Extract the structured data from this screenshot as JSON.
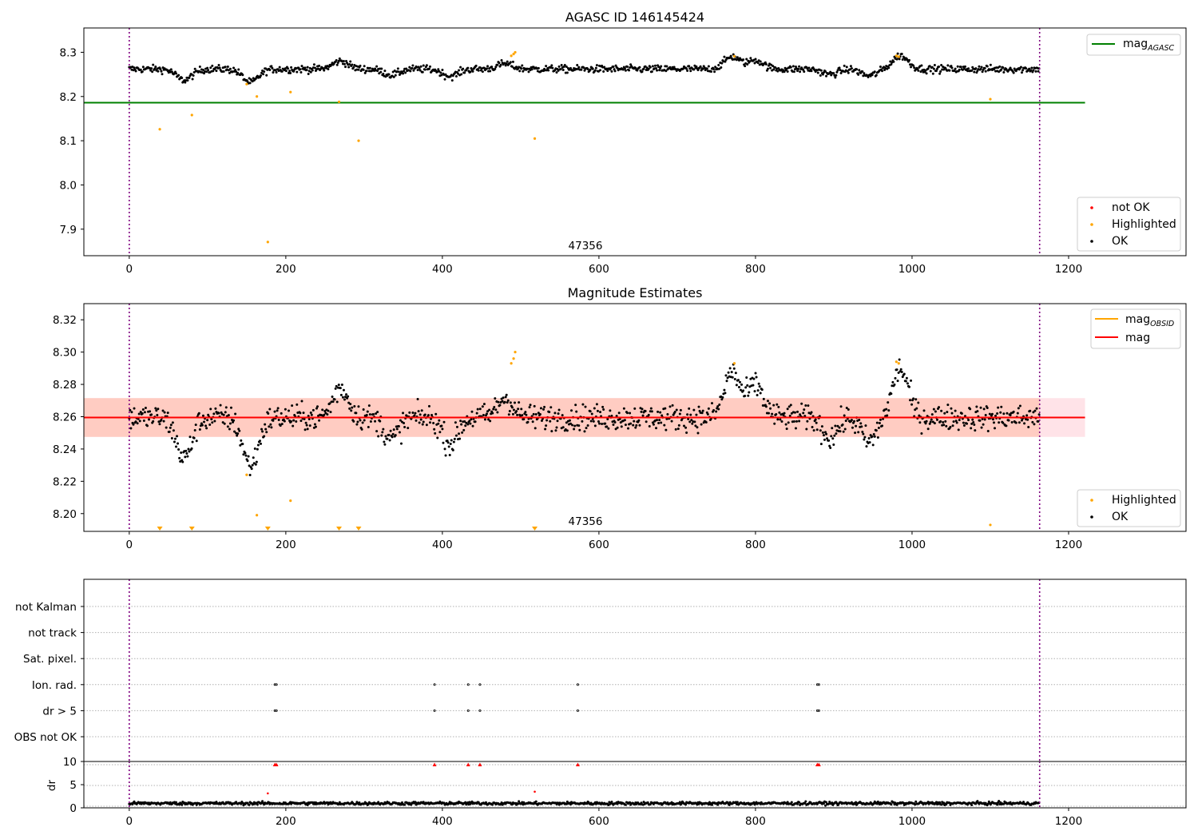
{
  "colors": {
    "ok": "#000000",
    "highlighted": "#ffa500",
    "not_ok": "#ff0000",
    "agasc_line": "#008000",
    "mag_line": "#ff0000",
    "obsid_line": "#ffa500",
    "vline": "#800080",
    "band_outer": "#ffc0cb",
    "band_inner": "#ffa07a"
  },
  "chart_data": [
    {
      "type": "scatter",
      "title": "AGASC ID 146145424",
      "xlim": [
        -58,
        1350
      ],
      "ylim": [
        7.84,
        8.355
      ],
      "xticks": [
        "0",
        "200",
        "400",
        "600",
        "800",
        "1000",
        "1200"
      ],
      "yticks": [
        "7.9",
        "8.0",
        "8.1",
        "8.2",
        "8.3"
      ],
      "obsid_label": "47356",
      "obsid_boundaries": [
        0,
        1163
      ],
      "mag_agasc": 8.186,
      "legend_lines": [
        {
          "label": "mag",
          "sub": "AGASC"
        }
      ],
      "legend_points": [
        "not OK",
        "Highlighted",
        "OK"
      ],
      "highlighted_points": [
        [
          39,
          8.126
        ],
        [
          80,
          8.158
        ],
        [
          150,
          8.228
        ],
        [
          163,
          8.2
        ],
        [
          177,
          7.871
        ],
        [
          206,
          8.21
        ],
        [
          268,
          8.188
        ],
        [
          293,
          8.1
        ],
        [
          488,
          8.292
        ],
        [
          491,
          8.296
        ],
        [
          493,
          8.3
        ],
        [
          518,
          8.105
        ],
        [
          773,
          8.291
        ],
        [
          980,
          8.292
        ],
        [
          983,
          8.29
        ],
        [
          1100,
          8.194
        ]
      ],
      "ok_series": {
        "x_start": 0,
        "x_end": 1163,
        "baseline": 8.262,
        "spread": 0.008,
        "anomalies": [
          [
            70,
            -0.025
          ],
          [
            155,
            -0.03
          ],
          [
            270,
            0.018
          ],
          [
            335,
            -0.013
          ],
          [
            410,
            -0.016
          ],
          [
            480,
            0.012
          ],
          [
            770,
            0.028
          ],
          [
            800,
            0.02
          ],
          [
            895,
            -0.012
          ],
          [
            945,
            -0.015
          ],
          [
            985,
            0.03
          ]
        ]
      }
    },
    {
      "type": "scatter",
      "title": "Magnitude Estimates",
      "xlim": [
        -58,
        1350
      ],
      "ylim": [
        8.189,
        8.33
      ],
      "xticks": [
        "0",
        "200",
        "400",
        "600",
        "800",
        "1000",
        "1200"
      ],
      "yticks": [
        "8.20",
        "8.22",
        "8.24",
        "8.26",
        "8.28",
        "8.30",
        "8.32"
      ],
      "obsid_label": "47356",
      "obsid_boundaries": [
        0,
        1163
      ],
      "mag": 8.2595,
      "mag_obsid": 8.2595,
      "band_outer": [
        8.2475,
        8.2715
      ],
      "band_inner": [
        8.2475,
        8.2715
      ],
      "legend_lines": [
        {
          "label": "mag",
          "sub": "OBSID"
        },
        {
          "label": "mag",
          "sub": ""
        }
      ],
      "legend_points": [
        "Highlighted",
        "OK"
      ],
      "highlighted_points": [
        [
          150,
          8.224
        ],
        [
          163,
          8.199
        ],
        [
          206,
          8.208
        ],
        [
          488,
          8.293
        ],
        [
          491,
          8.296
        ],
        [
          493,
          8.3
        ],
        [
          773,
          8.293
        ],
        [
          980,
          8.294
        ],
        [
          983,
          8.293
        ],
        [
          1100,
          8.193
        ]
      ],
      "highlighted_below": [
        39,
        80,
        177,
        268,
        293,
        518
      ],
      "ok_series": {
        "x_start": 0,
        "x_end": 1163,
        "baseline": 8.2595,
        "spread": 0.0075,
        "anomalies": [
          [
            70,
            -0.025
          ],
          [
            155,
            -0.03
          ],
          [
            270,
            0.018
          ],
          [
            335,
            -0.013
          ],
          [
            410,
            -0.016
          ],
          [
            480,
            0.012
          ],
          [
            770,
            0.028
          ],
          [
            800,
            0.02
          ],
          [
            895,
            -0.012
          ],
          [
            945,
            -0.015
          ],
          [
            985,
            0.03
          ]
        ]
      }
    },
    {
      "type": "scatter",
      "title": "",
      "xlim": [
        -58,
        1350
      ],
      "xticks": [
        "0",
        "200",
        "400",
        "600",
        "800",
        "1000",
        "1200"
      ],
      "flag_rows": [
        "not Kalman",
        "not track",
        "Sat. pixel.",
        "Ion. rad.",
        "dr > 5",
        "OBS not OK"
      ],
      "flag_points": {
        "Ion. rad.": [
          186,
          188,
          390,
          433,
          448,
          573,
          879,
          881
        ],
        "dr > 5": [
          186,
          188,
          390,
          433,
          448,
          573,
          879,
          881
        ]
      },
      "obsid_boundaries": [
        0,
        1163
      ]
    },
    {
      "type": "scatter",
      "title": "",
      "ylabel": "dr",
      "xlim": [
        -58,
        1350
      ],
      "ylim": [
        0,
        10
      ],
      "yticks": [
        "0",
        "5",
        "10"
      ],
      "xticks": [
        "0",
        "200",
        "400",
        "600",
        "800",
        "1000",
        "1200"
      ],
      "clipped_points": [
        186,
        188,
        390,
        433,
        448,
        573,
        879,
        881
      ],
      "red_points": [
        [
          177,
          3.1
        ],
        [
          518,
          3.5
        ]
      ],
      "ok_series": {
        "x_start": 0,
        "x_end": 1163,
        "baseline": 0.7,
        "spread": 0.35
      },
      "obsid_boundaries": [
        0,
        1163
      ]
    }
  ]
}
